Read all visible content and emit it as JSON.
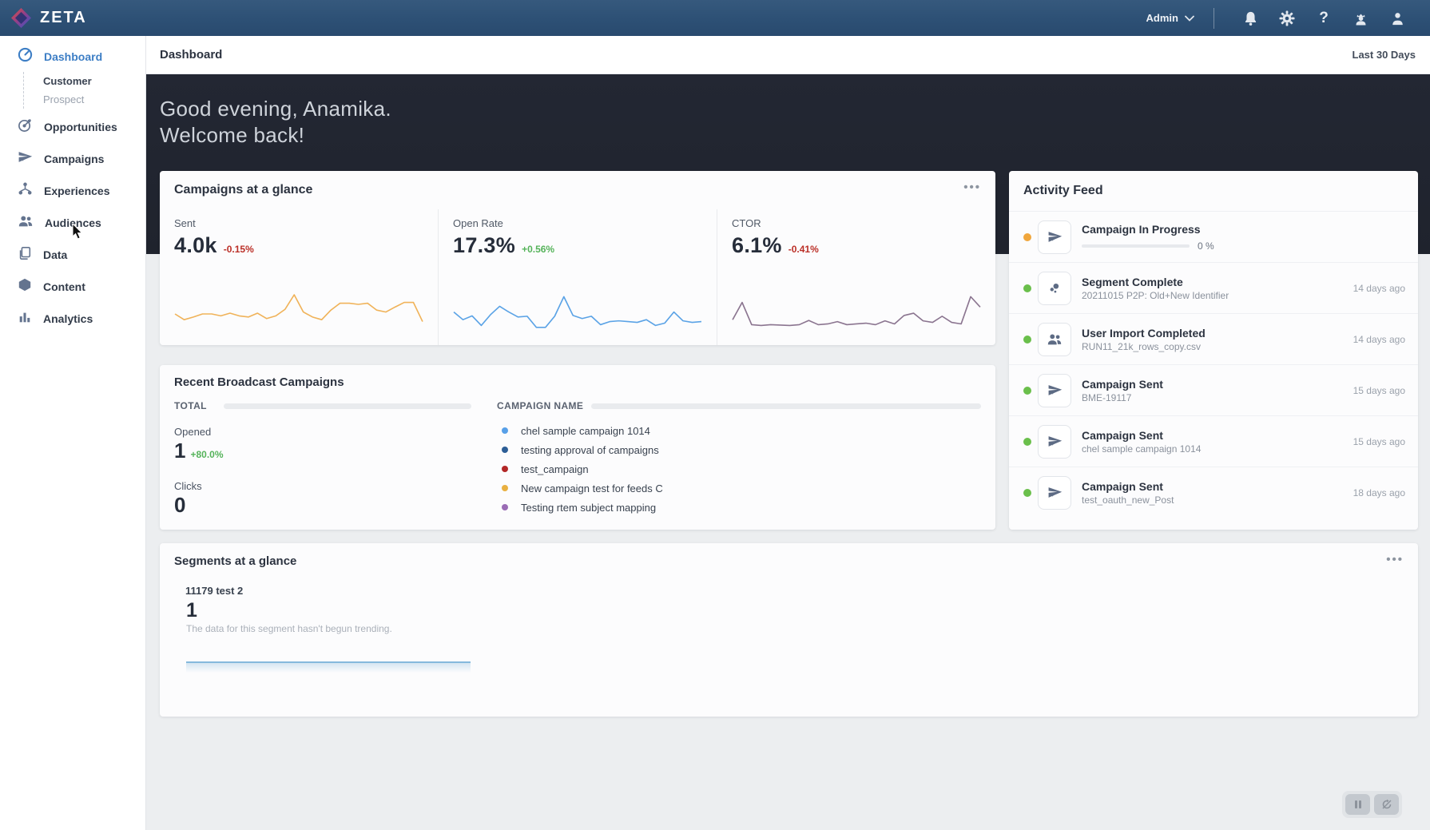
{
  "navbar": {
    "brand": "ZETA",
    "admin_label": "Admin",
    "icons": [
      "notifications",
      "settings",
      "help",
      "admin-user",
      "profile"
    ]
  },
  "sidebar": {
    "items": [
      {
        "label": "Dashboard",
        "icon": "dashboard",
        "active": true,
        "children": [
          {
            "label": "Customer",
            "current": true
          },
          {
            "label": "Prospect",
            "current": false
          }
        ]
      },
      {
        "label": "Opportunities",
        "icon": "target",
        "active": false
      },
      {
        "label": "Campaigns",
        "icon": "paper-plane",
        "active": false
      },
      {
        "label": "Experiences",
        "icon": "hierarchy",
        "active": false
      },
      {
        "label": "Audiences",
        "icon": "users",
        "active": false
      },
      {
        "label": "Data",
        "icon": "files",
        "active": false
      },
      {
        "label": "Content",
        "icon": "cube",
        "active": false
      },
      {
        "label": "Analytics",
        "icon": "bars",
        "active": false
      }
    ]
  },
  "header": {
    "title": "Dashboard",
    "range": "Last 30 Days"
  },
  "hero": {
    "line1": "Good evening, Anamika.",
    "line2": "Welcome back!"
  },
  "campaigns_glance": {
    "title": "Campaigns at a glance",
    "menu": "•••",
    "metrics": [
      {
        "label": "Sent",
        "value": "4.0k",
        "delta": "-0.15%",
        "direction": "down",
        "spark_color": "#f0b35a"
      },
      {
        "label": "Open Rate",
        "value": "17.3%",
        "delta": "+0.56%",
        "direction": "up",
        "spark_color": "#5ba3e6"
      },
      {
        "label": "CTOR",
        "value": "6.1%",
        "delta": "-0.41%",
        "direction": "down",
        "spark_color": "#8b7590"
      }
    ]
  },
  "recent_broadcast": {
    "title": "Recent Broadcast Campaigns",
    "total_label": "TOTAL",
    "opened": {
      "label": "Opened",
      "value": "1",
      "delta": "+80.0%"
    },
    "clicks": {
      "label": "Clicks",
      "value": "0"
    },
    "campaign_name_label": "CAMPAIGN NAME",
    "campaigns": [
      {
        "name": "chel sample campaign 1014",
        "color": "#58a0e8"
      },
      {
        "name": "testing approval of campaigns",
        "color": "#2d5e96"
      },
      {
        "name": "test_campaign",
        "color": "#b22727"
      },
      {
        "name": "New campaign test for feeds C",
        "color": "#e9b041"
      },
      {
        "name": "Testing rtem subject mapping",
        "color": "#9a6cb5"
      }
    ]
  },
  "activity_feed": {
    "title": "Activity Feed",
    "items": [
      {
        "title": "Campaign In Progress",
        "icon": "paper-plane",
        "status_color": "#f0a63c",
        "progress_percent": 0,
        "progress_label": "0 %",
        "time": ""
      },
      {
        "title": "Segment Complete",
        "subtitle": "20211015 P2P: Old+New Identifier",
        "icon": "segment",
        "status_color": "#6abf4b",
        "time": "14 days ago"
      },
      {
        "title": "User Import Completed",
        "subtitle": "RUN11_21k_rows_copy.csv",
        "icon": "users",
        "status_color": "#6abf4b",
        "time": "14 days ago"
      },
      {
        "title": "Campaign Sent",
        "subtitle": "BME-19117",
        "icon": "paper-plane",
        "status_color": "#6abf4b",
        "time": "15 days ago"
      },
      {
        "title": "Campaign Sent",
        "subtitle": "chel sample campaign 1014",
        "icon": "paper-plane",
        "status_color": "#6abf4b",
        "time": "15 days ago"
      },
      {
        "title": "Campaign Sent",
        "subtitle": "test_oauth_new_Post",
        "icon": "paper-plane",
        "status_color": "#6abf4b",
        "time": "18 days ago"
      }
    ]
  },
  "segments_glance": {
    "title": "Segments at a glance",
    "menu": "•••",
    "segment_name": "11179 test 2",
    "value": "1",
    "note": "The data for this segment hasn't begun trending."
  },
  "chart_data": [
    {
      "type": "line",
      "title": "Sent sparkline (last 30 days)",
      "legend_position": "none",
      "grid": false,
      "ylim": [
        0,
        10
      ],
      "color": "#f0b35a",
      "values": [
        5,
        3.5,
        4.2,
        5,
        5,
        4.5,
        5.2,
        4.5,
        4.2,
        5.2,
        3.8,
        4.5,
        6.2,
        10,
        5.5,
        4.2,
        3.5,
        6,
        7.8,
        7.8,
        7.5,
        7.8,
        6,
        5.5,
        6.8,
        8,
        8,
        3
      ]
    },
    {
      "type": "line",
      "title": "Open Rate sparkline (last 30 days)",
      "legend_position": "none",
      "grid": false,
      "ylim": [
        0,
        10
      ],
      "color": "#5ba3e6",
      "values": [
        5.5,
        3.5,
        4.5,
        2,
        4.8,
        7,
        5.5,
        4.2,
        4.4,
        1.5,
        1.5,
        4.4,
        9.5,
        4.6,
        3.8,
        4.4,
        2.2,
        3,
        3.2,
        3,
        2.8,
        3.5,
        2,
        2.6,
        5.5,
        3.2,
        2.8,
        3
      ]
    },
    {
      "type": "line",
      "title": "CTOR sparkline (last 30 days)",
      "legend_position": "none",
      "grid": false,
      "ylim": [
        0,
        10
      ],
      "color": "#8b7590",
      "values": [
        3.5,
        8,
        2.2,
        2,
        2.2,
        2.1,
        2,
        2.2,
        3.3,
        2.2,
        2.4,
        3,
        2.2,
        2.4,
        2.6,
        2.2,
        3.2,
        2.4,
        4.6,
        5.2,
        3.2,
        2.8,
        4.4,
        2.8,
        2.4,
        9.5,
        6.8
      ]
    },
    {
      "type": "line",
      "title": "Segment 11179 test 2 trend (flat)",
      "legend_position": "none",
      "grid": false,
      "ylim": [
        0,
        2
      ],
      "color": "#85b9dd",
      "values": [
        1,
        1
      ]
    }
  ]
}
